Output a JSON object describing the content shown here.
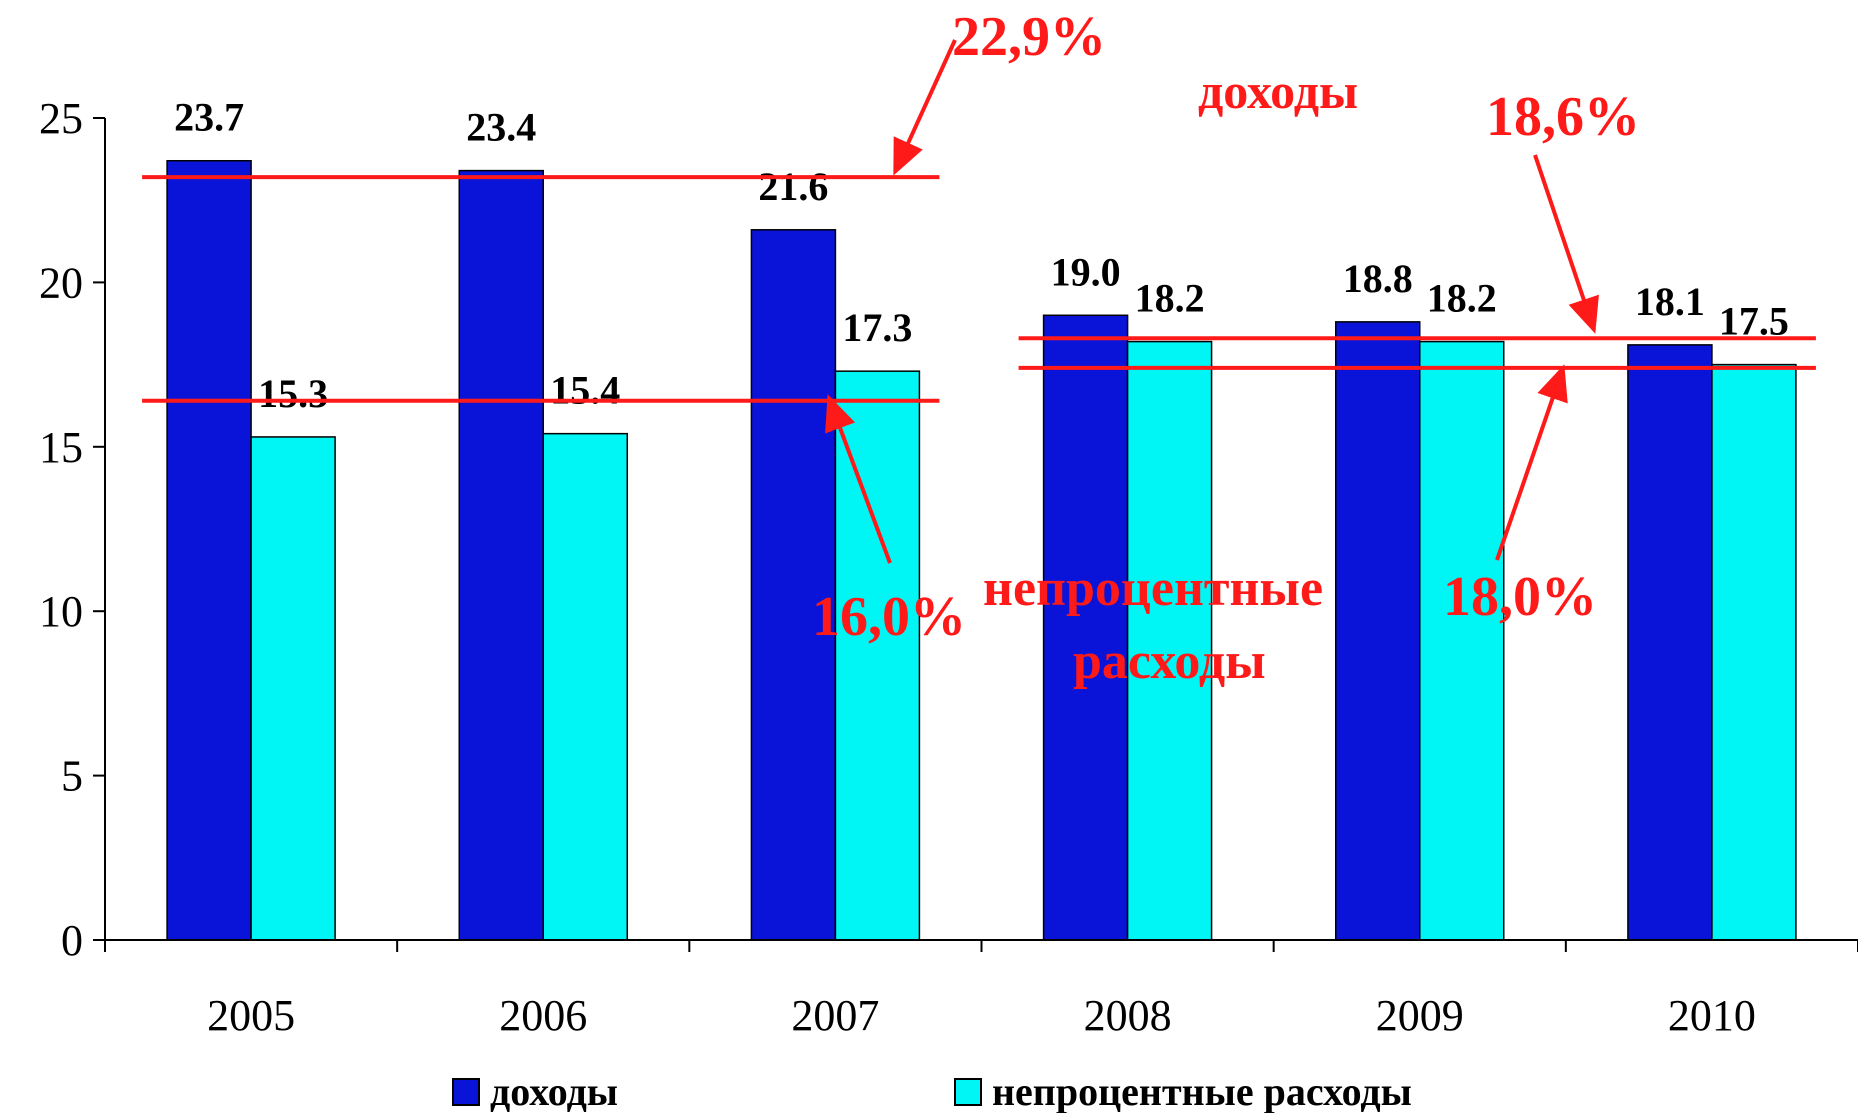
{
  "chart_data": {
    "type": "bar",
    "categories": [
      "2005",
      "2006",
      "2007",
      "2008",
      "2009",
      "2010"
    ],
    "series": [
      {
        "name": "доходы",
        "values": [
          23.7,
          23.4,
          21.6,
          19.0,
          18.8,
          18.1
        ],
        "labels": [
          "23.7",
          "23.4",
          "21.6",
          "19.0",
          "18.8",
          "18.1"
        ],
        "color": "#0a14d8"
      },
      {
        "name": "непроцентные расходы",
        "values": [
          15.3,
          15.4,
          17.3,
          18.2,
          18.2,
          17.5
        ],
        "labels": [
          "15.3",
          "15.4",
          "17.3",
          "18.2",
          "18.2",
          "17.5"
        ],
        "color": "#00f5f5"
      }
    ],
    "y_ticks": [
      "0",
      "5",
      "10",
      "15",
      "20",
      "25"
    ],
    "ylim": [
      0,
      25
    ],
    "grid": false,
    "legend": "bottom",
    "title": "",
    "xlabel": "",
    "ylabel": "",
    "reference_lines": [
      {
        "from_category": "2005",
        "to_category": "2007",
        "value": 23.2,
        "color": "#ff1a1a"
      },
      {
        "from_category": "2005",
        "to_category": "2007",
        "value": 16.4,
        "color": "#ff1a1a"
      },
      {
        "from_category": "2008",
        "to_category": "2010",
        "value": 18.3,
        "color": "#ff1a1a"
      },
      {
        "from_category": "2008",
        "to_category": "2010",
        "value": 17.4,
        "color": "#ff1a1a"
      }
    ],
    "annotations": [
      {
        "text": "22,9%",
        "color": "#ff1a1a"
      },
      {
        "text": "доходы",
        "color": "#ff1a1a"
      },
      {
        "text": "18,6%",
        "color": "#ff1a1a"
      },
      {
        "text": "16,0%",
        "color": "#ff1a1a"
      },
      {
        "text": "непроцентные",
        "color": "#ff1a1a"
      },
      {
        "text": "расходы",
        "color": "#ff1a1a"
      },
      {
        "text": "18,0%",
        "color": "#ff1a1a"
      }
    ]
  }
}
